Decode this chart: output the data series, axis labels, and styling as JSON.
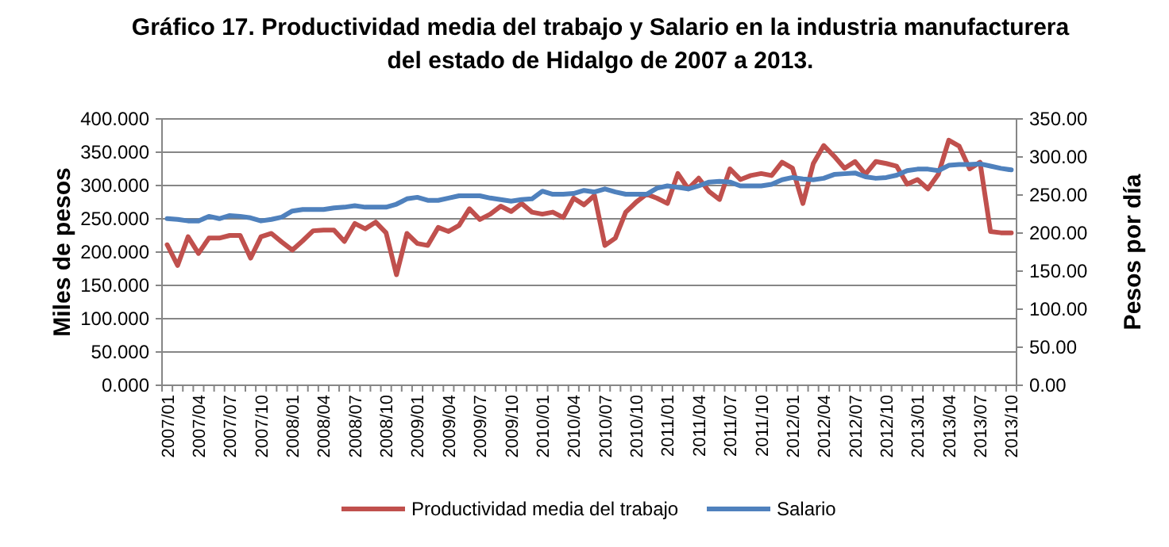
{
  "chart_data": {
    "type": "line",
    "title": "Gráfico 17. Productividad media del trabajo y Salario en la industria manufacturera\ndel estado de Hidalgo de 2007 a 2013.",
    "ylabel": "Miles de pesos",
    "y2label": "Pesos por día",
    "categories": [
      "2007/01",
      null,
      null,
      "2007/04",
      null,
      null,
      "2007/07",
      null,
      null,
      "2007/10",
      null,
      null,
      "2008/01",
      null,
      null,
      "2008/04",
      null,
      null,
      "2008/07",
      null,
      null,
      "2008/10",
      null,
      null,
      "2009/01",
      null,
      null,
      "2009/04",
      null,
      null,
      "2009/07",
      null,
      null,
      "2009/10",
      null,
      null,
      "2010/01",
      null,
      null,
      "2010/04",
      null,
      null,
      "2010/07",
      null,
      null,
      "2010/10",
      null,
      null,
      "2011/01",
      null,
      null,
      "2011/04",
      null,
      null,
      "2011/07",
      null,
      null,
      "2011/10",
      null,
      null,
      "2012/01",
      null,
      null,
      "2012/04",
      null,
      null,
      "2012/07",
      null,
      null,
      "2012/10",
      null,
      null,
      "2013/01",
      null,
      null,
      "2013/04",
      null,
      null,
      "2013/07",
      null,
      null,
      "2013/10"
    ],
    "series": [
      {
        "name": "Productividad media del trabajo",
        "color": "#c0504d",
        "values": [
          211,
          180,
          223,
          198,
          221,
          221,
          225,
          225,
          191,
          223,
          228,
          215,
          203,
          217,
          232,
          233,
          233,
          216,
          243,
          235,
          245,
          229,
          166,
          228,
          213,
          210,
          237,
          231,
          240,
          265,
          249,
          257,
          269,
          261,
          273,
          260,
          257,
          260,
          252,
          281,
          271,
          285,
          210,
          221,
          260,
          275,
          287,
          281,
          273,
          318,
          295,
          311,
          291,
          279,
          325,
          309,
          315,
          318,
          315,
          335,
          326,
          273,
          333,
          360,
          344,
          326,
          336,
          317,
          336,
          333,
          329,
          302,
          309,
          295,
          317,
          368,
          359,
          325,
          335,
          231,
          229,
          229
        ]
      },
      {
        "name": "Salario",
        "color": "#4f81bd",
        "axis": "y2",
        "values": [
          219,
          218,
          216,
          216,
          222,
          219,
          223,
          222,
          220,
          216,
          218,
          221,
          229,
          231,
          231,
          231,
          233,
          234,
          236,
          234,
          234,
          234,
          238,
          245,
          247,
          243,
          243,
          246,
          249,
          249,
          249,
          246,
          244,
          242,
          244,
          245,
          255,
          251,
          251,
          252,
          256,
          254,
          258,
          254,
          251,
          251,
          251,
          259,
          262,
          260,
          258,
          262,
          267,
          268,
          267,
          262,
          262,
          262,
          264,
          270,
          273,
          271,
          270,
          272,
          277,
          278,
          279,
          274,
          272,
          273,
          276,
          282,
          284,
          284,
          282,
          289,
          290,
          290,
          291,
          288,
          285,
          283
        ]
      }
    ],
    "ylim": [
      0,
      400
    ],
    "yticks": [
      {
        "value": 0,
        "label": "0.000"
      },
      {
        "value": 50,
        "label": "50.000"
      },
      {
        "value": 100,
        "label": "100.000"
      },
      {
        "value": 150,
        "label": "150.000"
      },
      {
        "value": 200,
        "label": "200.000"
      },
      {
        "value": 250,
        "label": "250.000"
      },
      {
        "value": 300,
        "label": "300.000"
      },
      {
        "value": 350,
        "label": "350.000"
      },
      {
        "value": 400,
        "label": "400.000"
      }
    ],
    "y2lim": [
      0,
      350
    ],
    "y2ticks": [
      {
        "value": 0,
        "label": "0.00"
      },
      {
        "value": 50,
        "label": "50.00"
      },
      {
        "value": 100,
        "label": "100.00"
      },
      {
        "value": 150,
        "label": "150.00"
      },
      {
        "value": 200,
        "label": "200.00"
      },
      {
        "value": 250,
        "label": "250.00"
      },
      {
        "value": 300,
        "label": "300.00"
      },
      {
        "value": 350,
        "label": "350.00"
      }
    ],
    "grid": "y",
    "legend": "bottom",
    "marker": "none",
    "line_style": "solid"
  }
}
